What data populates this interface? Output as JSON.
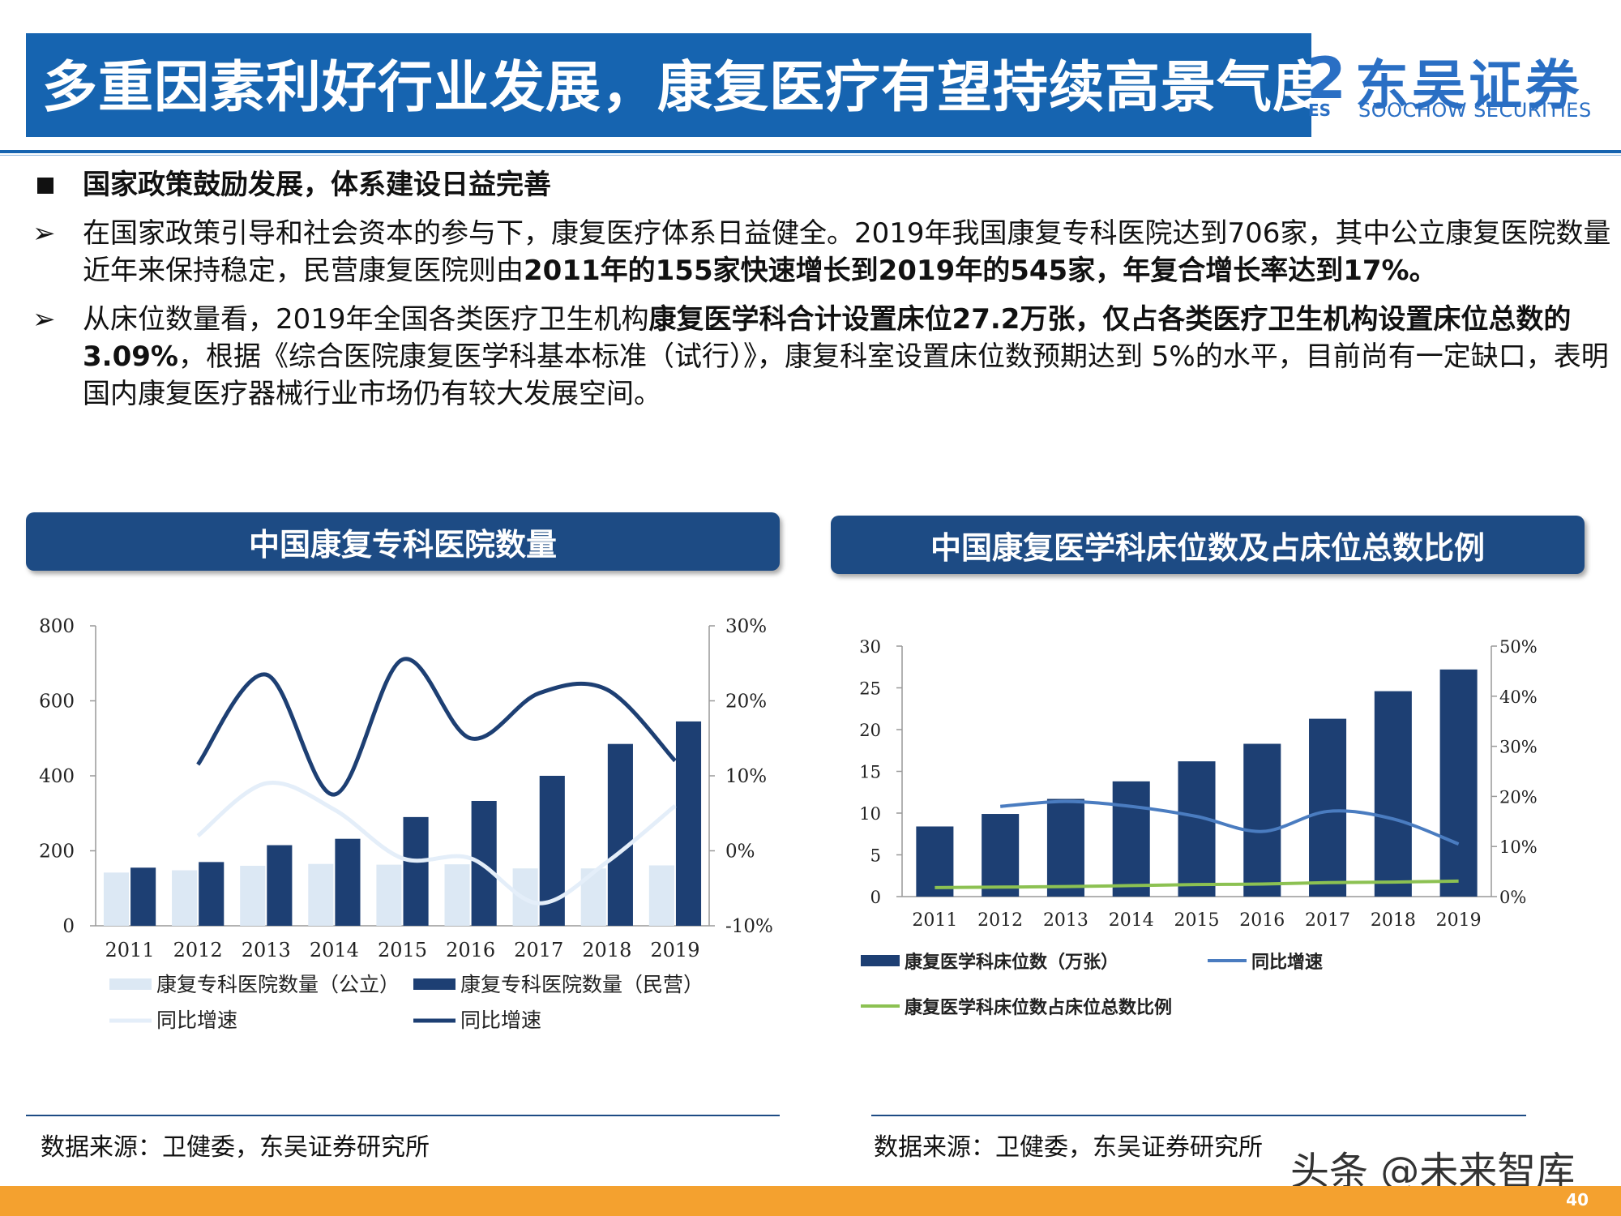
{
  "slide": {
    "title": "多重因素利好行业发展，康复医疗有望持续高景气度",
    "logo_cn": "东吴证券",
    "logo_en": "SOOCHOW SECURITIES",
    "logo_fragment_es": "ES",
    "logo_fragment_mark": "2",
    "page_number": "40",
    "watermark": "头条 @未来智库"
  },
  "bullets": {
    "heading": "国家政策鼓励发展，体系建设日益完善",
    "arrow": "➢",
    "p1_a": "在国家政策引导和社会资本的参与下，康复医疗体系日益健全。2019年我国康复专科医院达到706家，其中公立康复医院数量近年来保持稳定，民营康复医院则由",
    "p1_b": "2011年的155家快速增长到2019年的545家，年复合增长率达到17%。",
    "p2_a": "从床位数量看，2019年全国各类医疗卫生机构",
    "p2_b": "康复医学科合计设置床位27.2万张，仅占各类医疗卫生机构设置床位总数的3.09%",
    "p2_c": "，根据《综合医院康复医学科基本标准（试行）》，康复科室设置床位数预期达到 5%的水平，目前尚有一定缺口，表明国内康复医疗器械行业市场仍有较大发展空间。"
  },
  "left_panel": {
    "header": "中国康复专科医院数量",
    "source": "数据来源：卫健委，东吴证券研究所"
  },
  "right_panel": {
    "header": "中国康复医学科床位数及占床位总数比例",
    "source": "数据来源：卫健委，东吴证券研究所"
  },
  "colors": {
    "dark_navy": "#1d3f73",
    "light_blue": "#dce8f4",
    "light_line": "#e4eef9",
    "mid_blue": "#4a7cc0",
    "green": "#8cc152"
  },
  "chart_data": [
    {
      "type": "bar",
      "categories": [
        "2011",
        "2012",
        "2013",
        "2014",
        "2015",
        "2016",
        "2017",
        "2018",
        "2019"
      ],
      "ylim": [
        0,
        800
      ],
      "yticks": [
        "0",
        "200",
        "400",
        "600",
        "800"
      ],
      "y2lim": [
        -10,
        30
      ],
      "y2ticks": [
        "-10%",
        "0%",
        "10%",
        "20%",
        "30%"
      ],
      "series": [
        {
          "name": "康复专科医院数量（公立）",
          "kind": "bar",
          "axis": "left",
          "values": [
            142,
            148,
            160,
            165,
            163,
            164,
            153,
            153,
            161
          ]
        },
        {
          "name": "康复专科医院数量（民营）",
          "kind": "bar",
          "axis": "left",
          "values": [
            155,
            170,
            215,
            232,
            290,
            333,
            400,
            485,
            545
          ]
        },
        {
          "name": "同比增速",
          "kind": "line",
          "axis": "right",
          "values": [
            null,
            2,
            9,
            5.5,
            -1,
            -1,
            -7,
            -1.5,
            6
          ]
        },
        {
          "name": "同比增速",
          "kind": "line",
          "axis": "right",
          "values": [
            null,
            11.5,
            23.5,
            7.5,
            25.5,
            15,
            21,
            21.5,
            12
          ]
        }
      ],
      "legend": [
        "康复专科医院数量（公立）",
        "康复专科医院数量（民营）",
        "同比增速",
        "同比增速"
      ],
      "legend_placement": "bottom"
    },
    {
      "type": "bar",
      "categories": [
        "2011",
        "2012",
        "2013",
        "2014",
        "2015",
        "2016",
        "2017",
        "2018",
        "2019"
      ],
      "ylim": [
        0,
        30
      ],
      "yticks": [
        "0",
        "5",
        "10",
        "15",
        "20",
        "25",
        "30"
      ],
      "y2lim": [
        0,
        50
      ],
      "y2ticks": [
        "0%",
        "10%",
        "20%",
        "30%",
        "40%",
        "50%"
      ],
      "series": [
        {
          "name": "康复医学科床位数（万张）",
          "kind": "bar",
          "axis": "left",
          "values": [
            8.4,
            9.9,
            11.7,
            13.8,
            16.2,
            18.3,
            21.3,
            24.6,
            27.2
          ]
        },
        {
          "name": "同比增速",
          "kind": "line",
          "axis": "right",
          "values": [
            null,
            18,
            19,
            18,
            16,
            13,
            17,
            15.5,
            10.5
          ]
        },
        {
          "name": "康复医学科床位数占床位总数比例",
          "kind": "line",
          "axis": "right",
          "values": [
            1.8,
            1.9,
            2.0,
            2.2,
            2.4,
            2.5,
            2.8,
            2.9,
            3.09
          ]
        }
      ],
      "legend": [
        "康复医学科床位数（万张）",
        "同比增速",
        "康复医学科床位数占床位总数比例"
      ],
      "legend_placement": "bottom"
    }
  ]
}
